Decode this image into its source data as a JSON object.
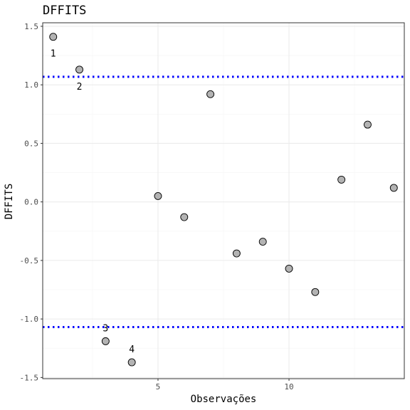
{
  "chart_data": {
    "type": "scatter",
    "title": "DFFITS",
    "xlabel": "Observações",
    "ylabel": "DFFITS",
    "xlim": [
      0.6,
      14.4
    ],
    "ylim": [
      -1.51,
      1.53
    ],
    "x_ticks": [
      5,
      10
    ],
    "x_tick_labels": [
      "5",
      "10"
    ],
    "y_ticks": [
      -1.5,
      -1.0,
      -0.5,
      0.0,
      0.5,
      1.0,
      1.5
    ],
    "y_tick_labels": [
      "-1.5",
      "-1.0",
      "-0.5",
      "0.0",
      "0.5",
      "1.0",
      "1.5"
    ],
    "grid": true,
    "points": [
      {
        "x": 1,
        "y": 1.41
      },
      {
        "x": 2,
        "y": 1.13
      },
      {
        "x": 3,
        "y": -1.19
      },
      {
        "x": 4,
        "y": -1.37
      },
      {
        "x": 5,
        "y": 0.05
      },
      {
        "x": 6,
        "y": -0.13
      },
      {
        "x": 7,
        "y": 0.92
      },
      {
        "x": 8,
        "y": -0.44
      },
      {
        "x": 9,
        "y": -0.34
      },
      {
        "x": 10,
        "y": -0.57
      },
      {
        "x": 11,
        "y": -0.77
      },
      {
        "x": 12,
        "y": 0.19
      },
      {
        "x": 13,
        "y": 0.66
      },
      {
        "x": 14,
        "y": 0.12
      }
    ],
    "point_labels": [
      {
        "text": "1",
        "x": 1,
        "y": 1.41,
        "side": "below"
      },
      {
        "text": "2",
        "x": 2,
        "y": 1.13,
        "side": "below"
      },
      {
        "text": "3",
        "x": 3,
        "y": -1.19,
        "side": "above"
      },
      {
        "text": "4",
        "x": 4,
        "y": -1.37,
        "side": "above"
      }
    ],
    "reference_lines": [
      {
        "y": 1.069,
        "style": "dotted",
        "color": "#0000ff"
      },
      {
        "y": -1.069,
        "style": "dotted",
        "color": "#0000ff"
      }
    ],
    "colors": {
      "point_fill": "#b3b3b3",
      "point_stroke": "#000000",
      "grid_major": "#ebebeb",
      "grid_minor": "#f5f5f5",
      "panel_border": "#333333",
      "reference_line": "#0000ff"
    }
  }
}
